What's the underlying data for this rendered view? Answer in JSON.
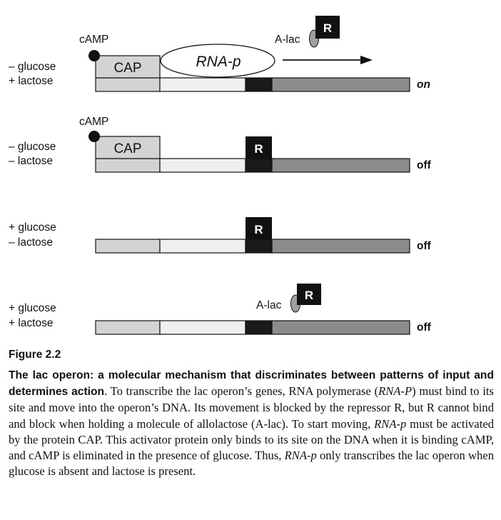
{
  "panels": [
    {
      "glucose": "– glucose",
      "lactose": "+ lactose",
      "camp": "cAMP",
      "cap": "CAP",
      "rnap": "RNA-p",
      "alac": "A-lac",
      "repressor": "R",
      "state": "on"
    },
    {
      "glucose": "– glucose",
      "lactose": "– lactose",
      "camp": "cAMP",
      "cap": "CAP",
      "repressor": "R",
      "state": "off"
    },
    {
      "glucose": "+ glucose",
      "lactose": "– lactose",
      "repressor": "R",
      "state": "off"
    },
    {
      "glucose": "+ glucose",
      "lactose": "+ lactose",
      "alac": "A-lac",
      "repressor": "R",
      "state": "off"
    }
  ],
  "caption": {
    "figure_label": "Figure 2.2",
    "heading": "The lac operon: a molecular mechanism that discriminates between patterns of input and determines action",
    "t1": ". To transcribe the lac operon’s genes, RNA polymerase (",
    "i1": "RNA-P",
    "t2": ") must bind to its site and move into the operon’s DNA. Its movement is blocked by the repressor R, but R cannot bind and block when holding a molecule of allolactose (A-lac). To start moving, ",
    "i2": "RNA-p",
    "t3": " must be activated by the protein CAP. This activator protein only binds to its site on the DNA when it is binding cAMP, and cAMP is eliminated in the presence of glucose. Thus, ",
    "i3": "RNA-p",
    "t4": " only transcribes the lac operon when glucose is absent and lactose is present."
  },
  "colors": {
    "cap_site": "#d3d3d3",
    "promoter": "#efefef",
    "operator": "#1a1a1a",
    "genes": "#8c8c8c",
    "repressor": "#111111",
    "alac": "#a0a0a0"
  }
}
